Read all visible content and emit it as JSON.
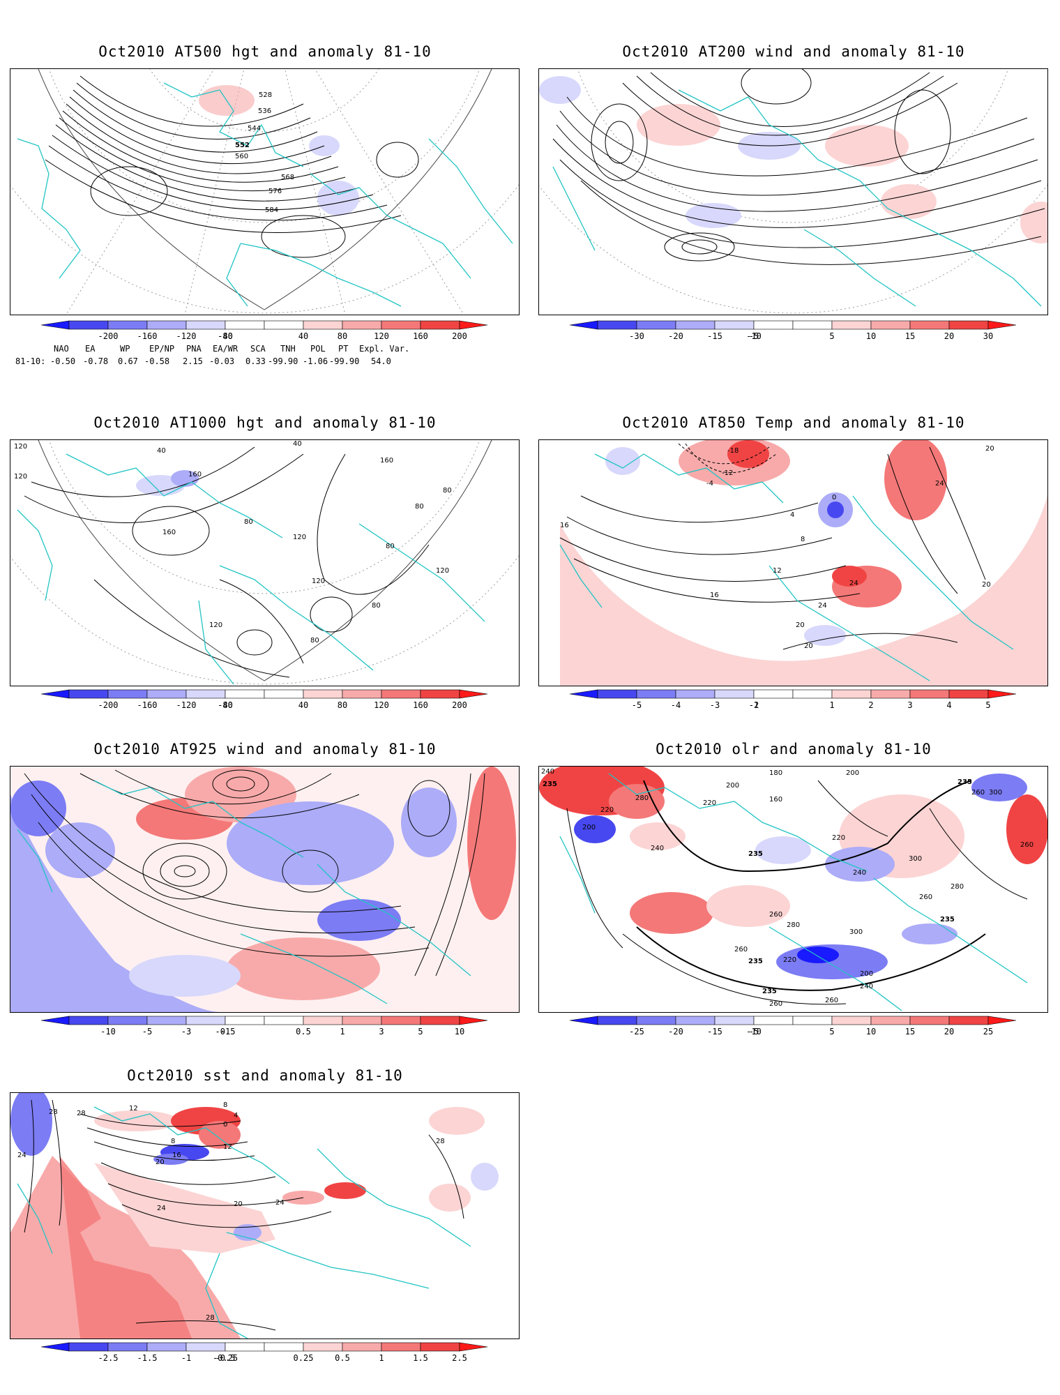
{
  "panels": [
    {
      "id": "hgt500",
      "title": "Oct2010 AT500 hgt and anomaly 81-10",
      "contour_labels": [
        "528",
        "536",
        "544",
        "552",
        "560",
        "568",
        "576",
        "584"
      ],
      "colorbar": [
        "-200",
        "-160",
        "-120",
        "-80",
        "-40",
        "40",
        "80",
        "120",
        "160",
        "200"
      ]
    },
    {
      "id": "wind200",
      "title": "Oct2010 AT200 wind and anomaly 81-10",
      "contour_labels": [],
      "colorbar": [
        "-30",
        "-20",
        "-15",
        "-10",
        "-5",
        "5",
        "10",
        "15",
        "20",
        "30"
      ]
    },
    {
      "id": "hgt1000",
      "title": "Oct2010 AT1000 hgt and anomaly 81-10",
      "contour_labels": [
        "120",
        "120",
        "40",
        "160",
        "40",
        "160",
        "80",
        "80",
        "160",
        "80",
        "120",
        "80",
        "120",
        "120",
        "80",
        "80",
        "120"
      ],
      "colorbar": [
        "-200",
        "-160",
        "-120",
        "-80",
        "-40",
        "40",
        "80",
        "120",
        "160",
        "200"
      ]
    },
    {
      "id": "temp850",
      "title": "Oct2010 AT850 Temp and anomaly 81-10",
      "contour_labels": [
        "-18",
        "-12",
        "-4",
        "0",
        "4",
        "8",
        "12",
        "16",
        "16",
        "20",
        "24",
        "24",
        "20",
        "24",
        "20",
        "20"
      ],
      "colorbar": [
        "-5",
        "-4",
        "-3",
        "-2",
        "-1",
        "1",
        "2",
        "3",
        "4",
        "5"
      ]
    },
    {
      "id": "wind925",
      "title": "Oct2010 AT925 wind and anomaly 81-10",
      "contour_labels": [],
      "colorbar": [
        "-10",
        "-5",
        "-3",
        "-1",
        "-0.5",
        "0.5",
        "1",
        "3",
        "5",
        "10"
      ]
    },
    {
      "id": "olr",
      "title": "Oct2010 olr and anomaly 81-10",
      "contour_labels": [
        "240",
        "235",
        "280",
        "220",
        "200",
        "180",
        "200",
        "200",
        "160",
        "220",
        "235",
        "260",
        "300",
        "240",
        "260",
        "235",
        "220",
        "240",
        "260",
        "300",
        "280",
        "260",
        "280",
        "300",
        "260",
        "235",
        "220",
        "235",
        "200",
        "240",
        "260",
        "235",
        "260"
      ],
      "colorbar": [
        "-25",
        "-20",
        "-15",
        "-10",
        "-5",
        "5",
        "10",
        "15",
        "20",
        "25"
      ]
    },
    {
      "id": "sst",
      "title": "Oct2010 sst and anomaly 81-10",
      "contour_labels": [
        "28",
        "28",
        "24",
        "12",
        "8",
        "4",
        "0",
        "8",
        "12",
        "16",
        "20",
        "20",
        "24",
        "24",
        "28",
        "28"
      ],
      "colorbar": [
        "-2.5",
        "-1.5",
        "-1",
        "-0.5",
        "-0.25",
        "0.25",
        "0.5",
        "1",
        "1.5",
        "2.5"
      ]
    }
  ],
  "teleconnection_indices": {
    "header": [
      "NAO",
      "EA",
      "WP",
      "EP/NP",
      "PNA",
      "EA/WR",
      "SCA",
      "TNH",
      "POL",
      "PT",
      "Expl. Var."
    ],
    "row_label": "81-10:",
    "values": [
      "-0.50",
      "-0.78",
      "0.67",
      "-0.58",
      "2.15",
      "-0.03",
      "0.33",
      "-99.90",
      "-1.06",
      "-99.90",
      "54.0"
    ]
  },
  "colors": {
    "blue_scale": [
      "#1a1aff",
      "#4848f0",
      "#7c7cf4",
      "#acacf8",
      "#d8d8fc"
    ],
    "red_scale": [
      "#fcd4d4",
      "#f8aaaa",
      "#f47878",
      "#f04444",
      "#ff1a1a"
    ],
    "coastline": "#22c4c4",
    "contour": "#000000"
  }
}
